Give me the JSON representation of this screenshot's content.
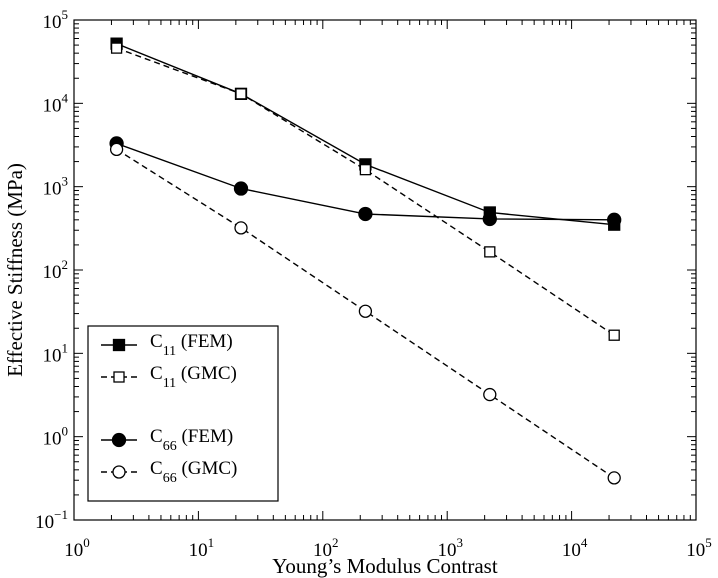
{
  "chart_data": {
    "type": "line",
    "xlabel": "Young’s Modulus Contrast",
    "ylabel": "Effective Stiffness (MPa)",
    "xscale": "log",
    "yscale": "log",
    "xlim": [
      1,
      100000
    ],
    "ylim": [
      0.1,
      100000
    ],
    "x_ticks": [
      {
        "base": "10",
        "exp": "0",
        "value": 1
      },
      {
        "base": "10",
        "exp": "1",
        "value": 10
      },
      {
        "base": "10",
        "exp": "2",
        "value": 100
      },
      {
        "base": "10",
        "exp": "3",
        "value": 1000
      },
      {
        "base": "10",
        "exp": "4",
        "value": 10000
      },
      {
        "base": "10",
        "exp": "5",
        "value": 100000
      }
    ],
    "y_ticks": [
      {
        "base": "10",
        "exp": "−1",
        "value": 0.1
      },
      {
        "base": "10",
        "exp": "0",
        "value": 1
      },
      {
        "base": "10",
        "exp": "1",
        "value": 10
      },
      {
        "base": "10",
        "exp": "2",
        "value": 100
      },
      {
        "base": "10",
        "exp": "3",
        "value": 1000
      },
      {
        "base": "10",
        "exp": "4",
        "value": 10000
      },
      {
        "base": "10",
        "exp": "5",
        "value": 100000
      }
    ],
    "grid": false,
    "legend_position": "bottom-left",
    "series": [
      {
        "name": "C11 (FEM)",
        "base": "C",
        "sub": "11",
        "method": "(FEM)",
        "marker": "square",
        "filled": true,
        "dashed": false,
        "x": [
          2.2,
          22,
          220,
          2200,
          22000
        ],
        "y": [
          52000,
          13000,
          1850,
          490,
          350
        ]
      },
      {
        "name": "C11 (GMC)",
        "base": "C",
        "sub": "11",
        "method": "(GMC)",
        "marker": "square",
        "filled": false,
        "dashed": true,
        "x": [
          2.2,
          22,
          220,
          2200,
          22000
        ],
        "y": [
          46000,
          13000,
          1600,
          165,
          16.5
        ]
      },
      {
        "name": "C66 (FEM)",
        "base": "C",
        "sub": "66",
        "method": "(FEM)",
        "marker": "circle",
        "filled": true,
        "dashed": false,
        "x": [
          2.2,
          22,
          220,
          2200,
          22000
        ],
        "y": [
          3300,
          950,
          470,
          410,
          400
        ]
      },
      {
        "name": "C66 (GMC)",
        "base": "C",
        "sub": "66",
        "method": "(GMC)",
        "marker": "circle",
        "filled": false,
        "dashed": true,
        "x": [
          2.2,
          22,
          220,
          2200,
          22000
        ],
        "y": [
          2800,
          320,
          32,
          3.2,
          0.32
        ]
      }
    ]
  }
}
